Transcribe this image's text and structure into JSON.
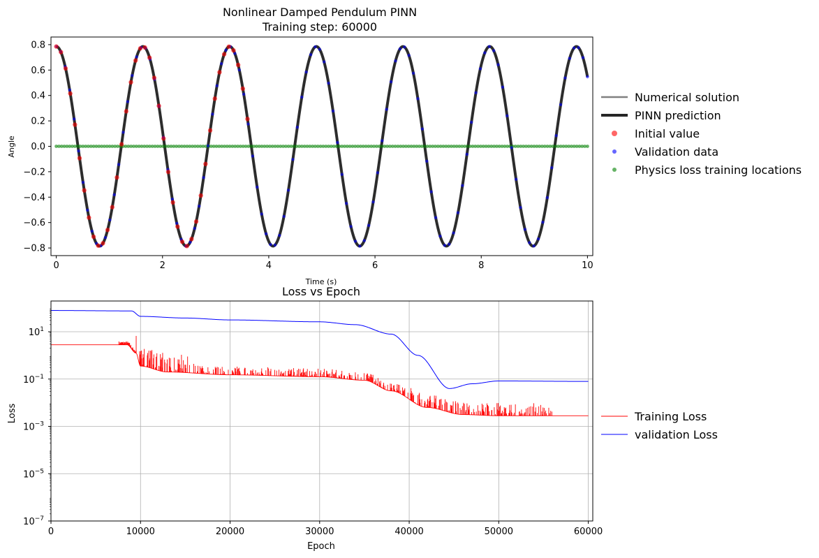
{
  "chart_data": [
    {
      "type": "line",
      "title": "Nonlinear Damped Pendulum PINN",
      "subtitle": "Training step: 60000",
      "xlabel": "Time (s)",
      "ylabel": "Angle",
      "xlim": [
        -0.1,
        10.1
      ],
      "ylim": [
        -0.86,
        0.86
      ],
      "xticks": [
        "0",
        "2",
        "4",
        "6",
        "8",
        "10"
      ],
      "xtick_values": [
        0,
        2,
        4,
        6,
        8,
        10
      ],
      "yticks": [
        "0.8",
        "0.6",
        "0.4",
        "0.2",
        "0.0",
        "−0.2",
        "−0.4",
        "−0.6",
        "−0.8"
      ],
      "ytick_values": [
        0.8,
        0.6,
        0.4,
        0.2,
        0.0,
        -0.2,
        -0.4,
        -0.6,
        -0.8
      ],
      "grid": false,
      "legend_position": "right-outside",
      "series": [
        {
          "name": "Numerical solution",
          "kind": "line",
          "color": "#808080",
          "amplitude": 0.7854,
          "period_s": 1.632,
          "t_range": [
            0,
            10
          ]
        },
        {
          "name": "PINN prediction",
          "kind": "line",
          "color": "#262626",
          "amplitude": 0.7854,
          "period_s": 1.632,
          "t_range": [
            0,
            10
          ]
        },
        {
          "name": "Initial value",
          "kind": "scatter",
          "color": "#ff0000",
          "t_range": [
            0,
            3.6
          ],
          "points": 42
        },
        {
          "name": "Validation data",
          "kind": "scatter",
          "color": "#0000ff",
          "t_range": [
            0,
            10
          ],
          "points": 120
        },
        {
          "name": "Physics loss training locations",
          "kind": "scatter",
          "color": "#008000",
          "t_range": [
            0,
            10
          ],
          "points": 200,
          "y": 0.0
        }
      ]
    },
    {
      "type": "line",
      "title": "Loss vs Epoch",
      "xlabel": "Epoch",
      "ylabel": "Loss",
      "xlim": [
        0,
        60500
      ],
      "yscale": "log",
      "ylim_log10": [
        -7,
        2.3
      ],
      "xticks": [
        "0",
        "10000",
        "20000",
        "30000",
        "40000",
        "50000",
        "60000"
      ],
      "xtick_values": [
        0,
        10000,
        20000,
        30000,
        40000,
        50000,
        60000
      ],
      "yticks_exponents": [
        1,
        -1,
        -3,
        -5,
        -7
      ],
      "ytick_base": "10",
      "grid": true,
      "legend_position": "right-outside",
      "series": [
        {
          "name": "Training Loss",
          "color": "#ff0000",
          "log10_keypoints": [
            [
              0,
              0.45
            ],
            [
              8500,
              0.45
            ],
            [
              9500,
              0.1
            ],
            [
              10000,
              -0.45
            ],
            [
              13000,
              -0.7
            ],
            [
              20000,
              -0.82
            ],
            [
              30000,
              -0.9
            ],
            [
              35000,
              -1.05
            ],
            [
              38000,
              -1.5
            ],
            [
              42000,
              -2.2
            ],
            [
              46000,
              -2.5
            ],
            [
              50000,
              -2.55
            ],
            [
              60000,
              -2.55
            ]
          ]
        },
        {
          "name": "validation Loss",
          "color": "#0000ff",
          "log10_keypoints": [
            [
              0,
              1.9
            ],
            [
              9000,
              1.88
            ],
            [
              10000,
              1.65
            ],
            [
              15000,
              1.58
            ],
            [
              20000,
              1.5
            ],
            [
              30000,
              1.42
            ],
            [
              34000,
              1.3
            ],
            [
              38000,
              0.9
            ],
            [
              41000,
              0.0
            ],
            [
              44500,
              -1.4
            ],
            [
              47000,
              -1.2
            ],
            [
              50000,
              -1.08
            ],
            [
              60000,
              -1.1
            ]
          ]
        }
      ]
    }
  ]
}
